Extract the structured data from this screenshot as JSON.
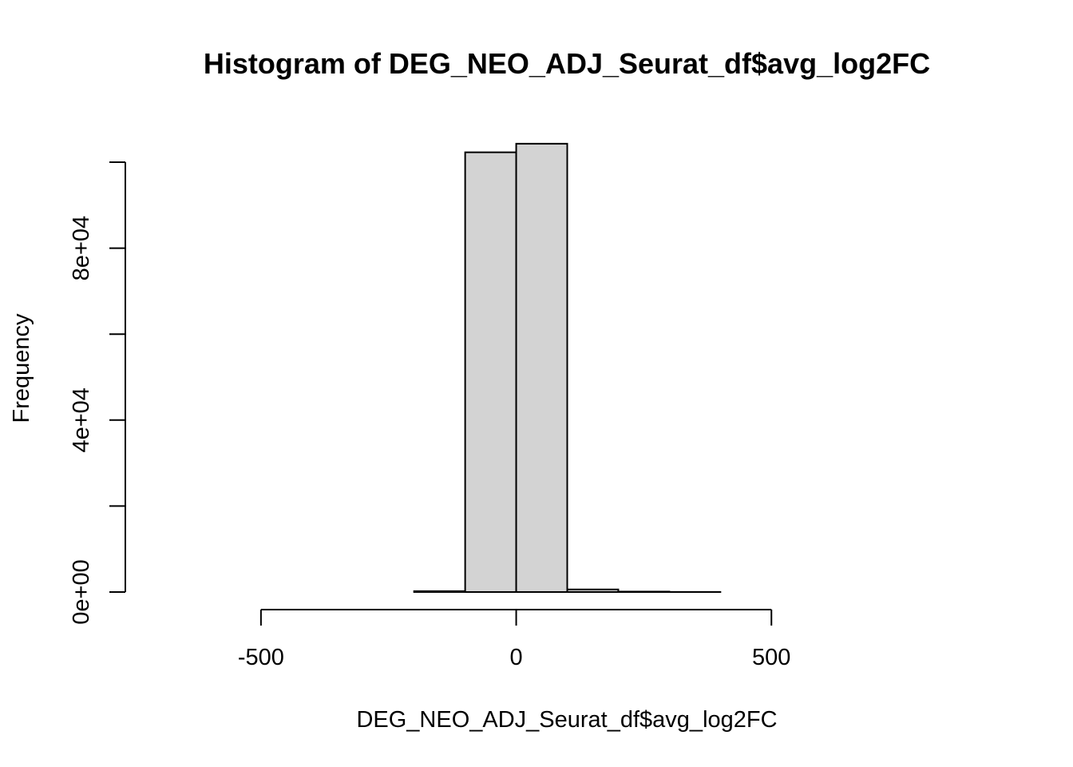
{
  "chart_data": {
    "type": "bar",
    "title": "Histogram of DEG_NEO_ADJ_Seurat_df$avg_log2FC",
    "xlabel": "DEG_NEO_ADJ_Seurat_df$avg_log2FC",
    "ylabel": "Frequency",
    "xlim": [
      -700,
      900
    ],
    "ylim": [
      0,
      100000
    ],
    "bin_width": 100,
    "x_ticks": [
      {
        "value": -500,
        "label": "-500"
      },
      {
        "value": 0,
        "label": "0"
      },
      {
        "value": 500,
        "label": "500"
      }
    ],
    "y_ticks": [
      {
        "value": 0,
        "label": "0e+00"
      },
      {
        "value": 20000,
        "label": ""
      },
      {
        "value": 40000,
        "label": "4e+04"
      },
      {
        "value": 60000,
        "label": ""
      },
      {
        "value": 80000,
        "label": "8e+04"
      },
      {
        "value": 100000,
        "label": ""
      }
    ],
    "bins": [
      {
        "start": -700,
        "end": -600,
        "count": 0
      },
      {
        "start": -600,
        "end": -500,
        "count": 0
      },
      {
        "start": -500,
        "end": -400,
        "count": 0
      },
      {
        "start": -400,
        "end": -300,
        "count": 0
      },
      {
        "start": -300,
        "end": -200,
        "count": 0
      },
      {
        "start": -200,
        "end": -100,
        "count": 200
      },
      {
        "start": -100,
        "end": 0,
        "count": 102300
      },
      {
        "start": 0,
        "end": 100,
        "count": 104300
      },
      {
        "start": 100,
        "end": 200,
        "count": 600
      },
      {
        "start": 200,
        "end": 300,
        "count": 100
      },
      {
        "start": 300,
        "end": 400,
        "count": 20
      },
      {
        "start": 400,
        "end": 500,
        "count": 0
      },
      {
        "start": 500,
        "end": 600,
        "count": 0
      },
      {
        "start": 600,
        "end": 700,
        "count": 0
      },
      {
        "start": 700,
        "end": 800,
        "count": 0
      },
      {
        "start": 800,
        "end": 900,
        "count": 0
      }
    ]
  }
}
